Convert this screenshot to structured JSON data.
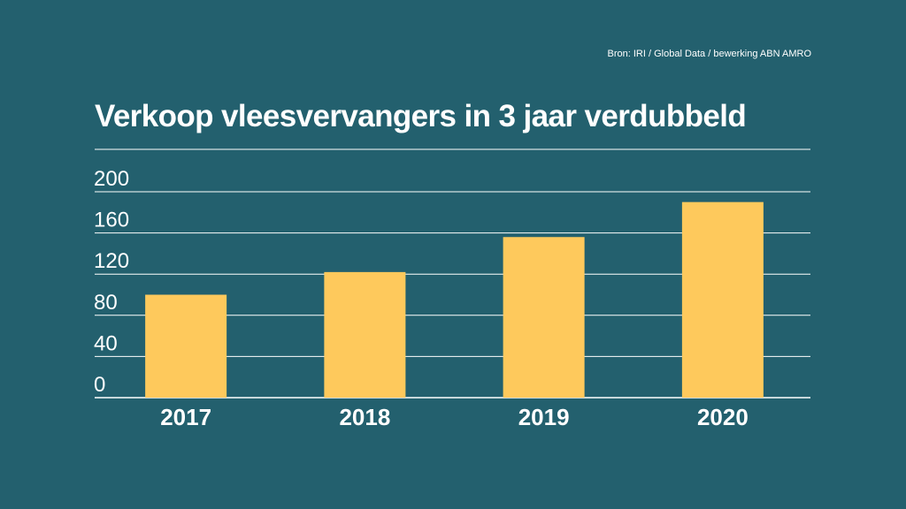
{
  "colors": {
    "background": "#23606e",
    "bar": "#fec95c",
    "line": "#ffffff"
  },
  "source": "Bron: IRI / Global Data / bewerking ABN AMRO",
  "chart_data": {
    "type": "bar",
    "title": "Verkoop vleesvervangers in 3 jaar verdubbeld",
    "xlabel": "",
    "ylabel": "",
    "categories": [
      "2017",
      "2018",
      "2019",
      "2020"
    ],
    "values": [
      100,
      122,
      156,
      190
    ],
    "ylim": [
      0,
      200
    ],
    "yticks": [
      0,
      40,
      80,
      120,
      160,
      200
    ],
    "ytick_labels": [
      "0",
      "40",
      "80",
      "120",
      "160",
      "200"
    ],
    "grid": true,
    "legend": "none"
  }
}
